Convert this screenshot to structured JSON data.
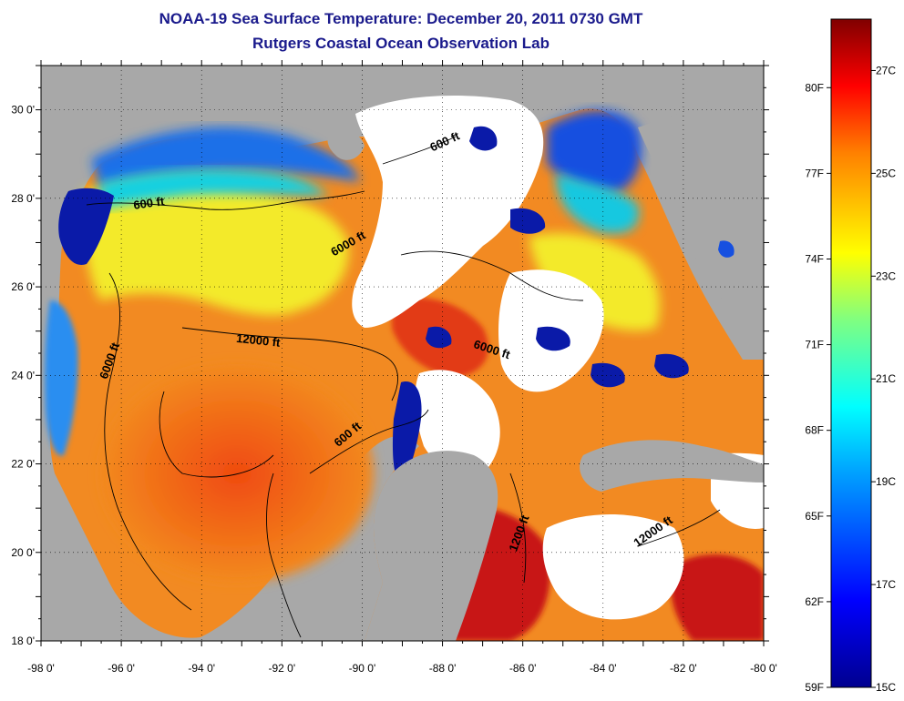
{
  "header": {
    "title": "NOAA-19 Sea Surface Temperature:  December 20, 2011 0730 GMT",
    "subtitle": "Rutgers Coastal Ocean Observation Lab"
  },
  "map": {
    "lon_range": [
      -98,
      -80
    ],
    "lat_range": [
      18,
      31
    ],
    "lon_ticks": [
      "-98 0'",
      "-96 0'",
      "-94 0'",
      "-92 0'",
      "-90 0'",
      "-88 0'",
      "-86 0'",
      "-84 0'",
      "-82 0'",
      "-80 0'"
    ],
    "lat_ticks": [
      "18 0'",
      "20 0'",
      "22 0'",
      "24 0'",
      "26 0'",
      "28 0'",
      "30 0'"
    ],
    "contour_labels": [
      {
        "text": "600 ft",
        "lon": -95.3,
        "lat": 27.8,
        "angle": -8
      },
      {
        "text": "6000 ft",
        "lon": -90.3,
        "lat": 26.9,
        "angle": -30
      },
      {
        "text": "600 ft",
        "lon": -87.9,
        "lat": 29.2,
        "angle": -25
      },
      {
        "text": "12000 ft",
        "lon": -92.6,
        "lat": 24.7,
        "angle": 6
      },
      {
        "text": "6000 ft",
        "lon": -96.2,
        "lat": 24.3,
        "angle": -70
      },
      {
        "text": "6000 ft",
        "lon": -86.8,
        "lat": 24.5,
        "angle": 18
      },
      {
        "text": "600 ft",
        "lon": -90.3,
        "lat": 22.6,
        "angle": -40
      },
      {
        "text": "1200 ft",
        "lon": -86.0,
        "lat": 20.4,
        "angle": -70
      },
      {
        "text": "12000 ft",
        "lon": -82.7,
        "lat": 20.4,
        "angle": -35
      }
    ],
    "colors": {
      "land": "#a8a8a8",
      "cloud": "#ffffff"
    }
  },
  "colorbar": {
    "c_min": 15,
    "c_max": 28,
    "celsius_labels": [
      "27C",
      "25C",
      "23C",
      "21C",
      "19C",
      "17C",
      "15C"
    ],
    "fahrenheit_labels": [
      "80F",
      "77F",
      "74F",
      "71F",
      "68F",
      "65F",
      "62F",
      "59F"
    ]
  }
}
